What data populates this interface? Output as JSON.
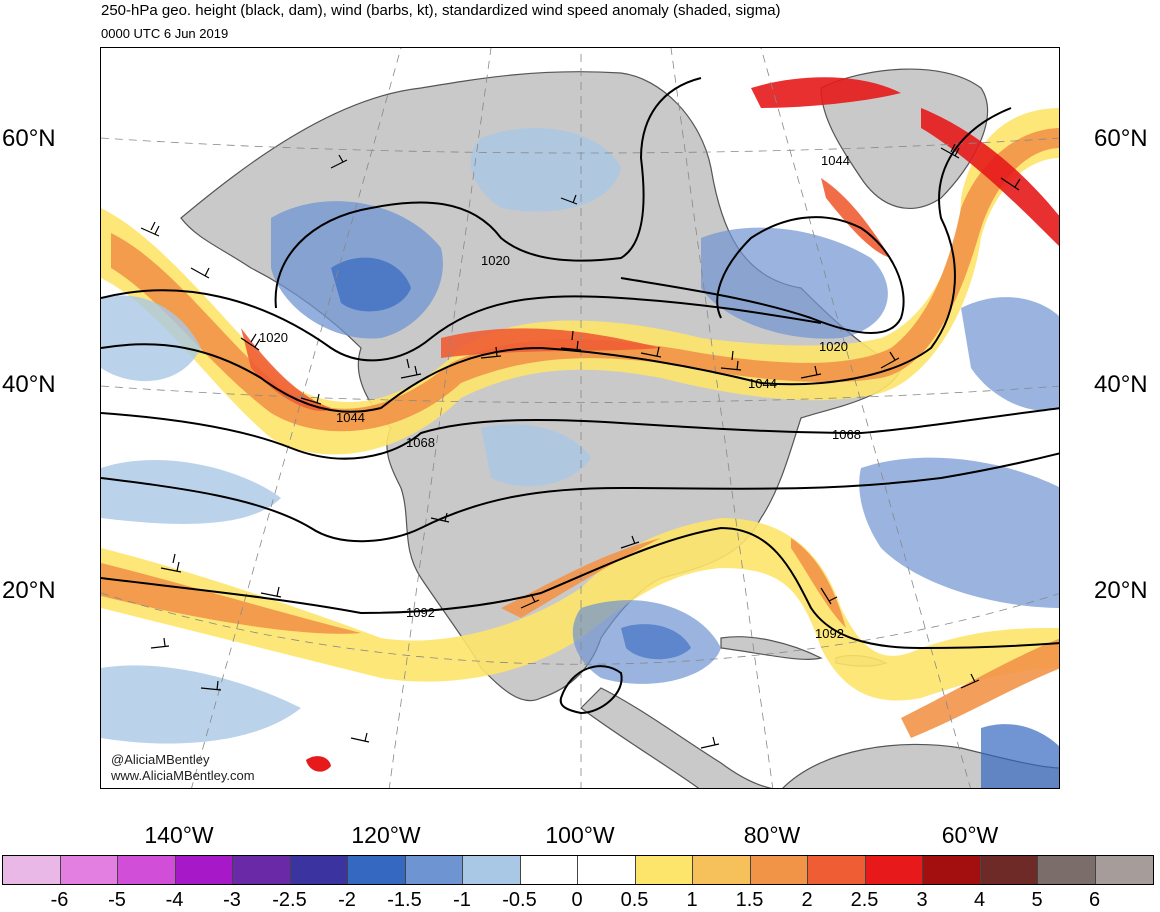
{
  "title": "250-hPa geo. height (black, dam), wind (barbs, kt), standardized wind speed anomaly (shaded, sigma)",
  "subtitle": "0000 UTC 6 Jun 2019",
  "lat_labels": [
    "60°N",
    "40°N",
    "20°N"
  ],
  "lon_labels": [
    "140°W",
    "120°W",
    "100°W",
    "80°W",
    "60°W"
  ],
  "contour_labels": [
    "1020",
    "1020",
    "1020",
    "1044",
    "1044",
    "1044",
    "1068",
    "1068",
    "1092",
    "1092"
  ],
  "watermark": {
    "handle": "@AliciaMBentley",
    "site": "www.AliciaMBentley.com"
  },
  "colorbar": {
    "labels": [
      "-6",
      "-5",
      "-4",
      "-3",
      "-2.5",
      "-2",
      "-1.5",
      "-1",
      "-0.5",
      "0",
      "0.5",
      "1",
      "1.5",
      "2",
      "2.5",
      "3",
      "4",
      "5",
      "6"
    ],
    "colors": [
      "#e9b8e6",
      "#e27fe0",
      "#d14fd8",
      "#a718c9",
      "#6a2aa8",
      "#3a33a0",
      "#3568c0",
      "#6f94d2",
      "#a9c8e6",
      "#ffffff",
      "#ffffff",
      "#fde46a",
      "#f6c05a",
      "#f29448",
      "#ef5d34",
      "#e7191b",
      "#a30f0f",
      "#6e2a26",
      "#7a6d6a",
      "#a69c9a"
    ]
  },
  "legend_colors": {
    "land": "#c9c9c9",
    "ocean": "#ffffff",
    "coastline": "#555555",
    "contour": "#000000",
    "graticule": "#888888"
  }
}
